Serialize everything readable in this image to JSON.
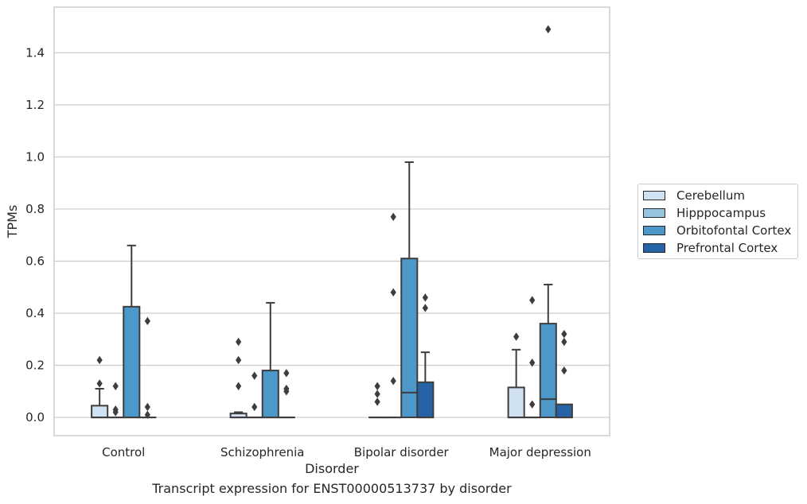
{
  "chart_data": {
    "type": "box",
    "xlabel": "Disorder",
    "ylabel": "TPMs",
    "caption": "Transcript expression for ENST00000513737 by disorder",
    "categories": [
      "Control",
      "Schizophrenia",
      "Bipolar disorder",
      "Major depression"
    ],
    "y_ticks": [
      "0.0",
      "0.2",
      "0.4",
      "0.6",
      "0.8",
      "1.0",
      "1.2",
      "1.4"
    ],
    "ylim": [
      -0.07,
      1.575
    ],
    "grid": true,
    "legend_position": "center-right, outside plot",
    "series": [
      {
        "name": "Cerebellum",
        "color": "#d0e1f2",
        "boxes": [
          {
            "q1": 0.0,
            "median": 0.0,
            "q3": 0.045,
            "whisker_low": 0.0,
            "whisker_high": 0.11,
            "outliers": [
              0.13,
              0.22
            ]
          },
          {
            "q1": 0.0,
            "median": 0.0,
            "q3": 0.015,
            "whisker_low": 0.0,
            "whisker_high": 0.02,
            "outliers": [
              0.12,
              0.22,
              0.29
            ]
          },
          {
            "q1": 0.0,
            "median": 0.0,
            "q3": 0.0,
            "whisker_low": 0.0,
            "whisker_high": 0.0,
            "outliers": [
              0.06,
              0.09,
              0.12
            ]
          },
          {
            "q1": 0.0,
            "median": 0.0,
            "q3": 0.115,
            "whisker_low": 0.0,
            "whisker_high": 0.26,
            "outliers": [
              0.31
            ]
          }
        ]
      },
      {
        "name": "Hipppocampus",
        "color": "#94c4df",
        "boxes": [
          {
            "q1": 0.0,
            "median": 0.0,
            "q3": 0.0,
            "whisker_low": 0.0,
            "whisker_high": 0.0,
            "outliers": [
              0.02,
              0.03,
              0.12
            ]
          },
          {
            "q1": 0.0,
            "median": 0.0,
            "q3": 0.0,
            "whisker_low": 0.0,
            "whisker_high": 0.0,
            "outliers": [
              0.04,
              0.16
            ]
          },
          {
            "q1": 0.0,
            "median": 0.0,
            "q3": 0.0,
            "whisker_low": 0.0,
            "whisker_high": 0.0,
            "outliers": [
              0.14,
              0.48,
              0.77
            ]
          },
          {
            "q1": 0.0,
            "median": 0.0,
            "q3": 0.0,
            "whisker_low": 0.0,
            "whisker_high": 0.0,
            "outliers": [
              0.05,
              0.21,
              0.45
            ]
          }
        ]
      },
      {
        "name": "Orbitofontal Cortex",
        "color": "#4b98c9",
        "boxes": [
          {
            "q1": 0.0,
            "median": 0.0,
            "q3": 0.425,
            "whisker_low": 0.0,
            "whisker_high": 0.66,
            "outliers": []
          },
          {
            "q1": 0.0,
            "median": 0.0,
            "q3": 0.18,
            "whisker_low": 0.0,
            "whisker_high": 0.44,
            "outliers": []
          },
          {
            "q1": 0.0,
            "median": 0.095,
            "q3": 0.61,
            "whisker_low": 0.0,
            "whisker_high": 0.98,
            "outliers": []
          },
          {
            "q1": 0.0,
            "median": 0.07,
            "q3": 0.36,
            "whisker_low": 0.0,
            "whisker_high": 0.51,
            "outliers": [
              1.49
            ]
          }
        ]
      },
      {
        "name": "Prefrontal Cortex",
        "color": "#2563a6",
        "boxes": [
          {
            "q1": 0.0,
            "median": 0.0,
            "q3": 0.0,
            "whisker_low": 0.0,
            "whisker_high": 0.0,
            "outliers": [
              0.01,
              0.04,
              0.37
            ]
          },
          {
            "q1": 0.0,
            "median": 0.0,
            "q3": 0.0,
            "whisker_low": 0.0,
            "whisker_high": 0.0,
            "outliers": [
              0.1,
              0.11,
              0.17
            ]
          },
          {
            "q1": 0.0,
            "median": 0.0,
            "q3": 0.135,
            "whisker_low": 0.0,
            "whisker_high": 0.25,
            "outliers": [
              0.42,
              0.46
            ]
          },
          {
            "q1": 0.0,
            "median": 0.0,
            "q3": 0.05,
            "whisker_low": 0.0,
            "whisker_high": 0.05,
            "outliers": [
              0.18,
              0.29,
              0.32
            ]
          }
        ]
      }
    ]
  }
}
